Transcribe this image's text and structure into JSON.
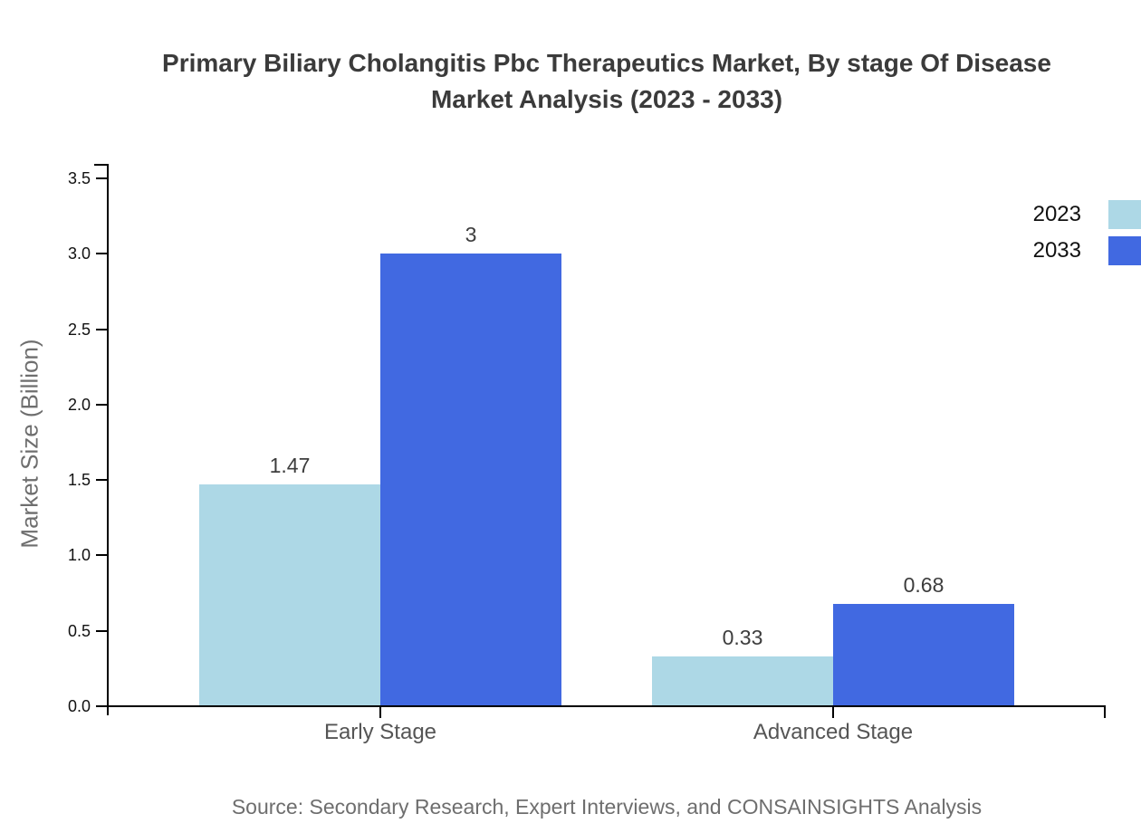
{
  "page": {
    "title_lines": [
      "Primary Biliary Cholangitis Pbc Therapeutics Market, By stage Of Disease",
      "Market Analysis (2023 - 2033)"
    ],
    "source": "Source: Secondary Research, Expert Interviews, and CONSAINSIGHTS Analysis"
  },
  "chart_data": {
    "type": "bar",
    "title": "Primary Biliary Cholangitis Pbc Therapeutics Market, By stage Of Disease Market Analysis (2023 - 2033)",
    "categories": [
      "Early Stage",
      "Advanced Stage"
    ],
    "series": [
      {
        "name": "2023",
        "color": "#add8e6",
        "values": [
          1.47,
          0.33
        ],
        "labels": [
          "1.47",
          "0.33"
        ]
      },
      {
        "name": "2033",
        "color": "#4169e1",
        "values": [
          3,
          0.68
        ],
        "labels": [
          "3",
          "0.68"
        ]
      }
    ],
    "xlabel": "",
    "ylabel": "Market Size (Billion)",
    "ylim": [
      0,
      3.5
    ],
    "yticks": [
      0,
      0.5,
      1,
      1.5,
      2,
      2.5,
      3,
      3.5
    ],
    "ytick_labels": [
      "0.0",
      "0.5",
      "1.0",
      "1.5",
      "2.0",
      "2.5",
      "3.0",
      "3.5"
    ],
    "grid": false,
    "legend_position": "top-right",
    "legend": [
      "2023",
      "2033"
    ],
    "axis_color": "#000000",
    "title_color": "#3b3b3b",
    "source": "Source: Secondary Research, Expert Interviews, and CONSAINSIGHTS Analysis"
  }
}
